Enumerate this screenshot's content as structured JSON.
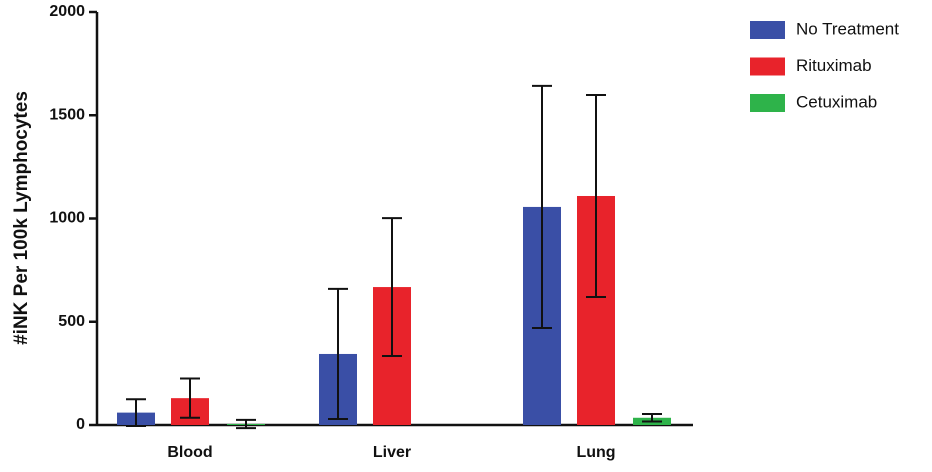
{
  "chart_data": {
    "type": "bar",
    "y_label": "#iNK  Per 100k Lymphocytes",
    "categories": [
      "Blood",
      "Liver",
      "Lung"
    ],
    "series": [
      {
        "name": "No Treatment",
        "color": "#3a4fa6",
        "values": [
          60,
          344,
          1056
        ],
        "errors": [
          65,
          315,
          586
        ]
      },
      {
        "name": "Rituximab",
        "color": "#e8232b",
        "values": [
          130,
          668,
          1109
        ],
        "errors": [
          95,
          334,
          489
        ]
      },
      {
        "name": "Cetuximab",
        "color": "#2eb34a",
        "values": [
          5,
          null,
          35
        ],
        "errors": [
          20,
          null,
          18
        ]
      }
    ],
    "ylim": [
      0,
      2000
    ],
    "yticks": [
      0,
      500,
      1000,
      1500,
      2000
    ]
  }
}
